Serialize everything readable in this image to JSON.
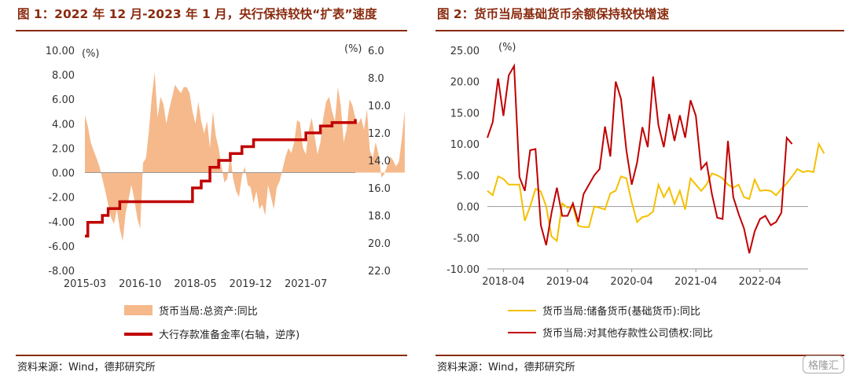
{
  "left": {
    "title": "图 1：2022 年 12 月-2023 年 1 月，央行保持较快“扩表”速度",
    "source": "资料来源：Wind，德邦研究所",
    "colors": {
      "area": "#f5b98b",
      "line": "#c00000"
    }
  },
  "right": {
    "title": "图 2：货币当局基础货币余额保持较快增速",
    "source": "资料来源：Wind，德邦研究所",
    "colors": {
      "series1": "#f5c000",
      "series2": "#c00000"
    }
  },
  "watermark": {
    "text": "格隆汇"
  },
  "chart_data": [
    {
      "type": "area",
      "left_unit": "(%)",
      "right_unit": "(%)",
      "y_ticks": [
        "10.00",
        "8.00",
        "6.00",
        "4.00",
        "2.00",
        "0.00",
        "-2.00",
        "-4.00",
        "-6.00",
        "-8.00"
      ],
      "ylim": [
        -8,
        10
      ],
      "y2_ticks": [
        "6.0",
        "8.0",
        "10.0",
        "12.0",
        "14.0",
        "16.0",
        "18.0",
        "20.0",
        "22.0"
      ],
      "y2lim": [
        6,
        22
      ],
      "y2_reversed": true,
      "x_ticks": [
        "2015-03",
        "2016-10",
        "2018-05",
        "2019-12",
        "2021-07"
      ],
      "grid": false,
      "legend_position": "bottom",
      "series": [
        {
          "name": "货币当局:总资产:同比",
          "kind": "area",
          "axis": "left",
          "start": "2015-03",
          "freq": "monthly",
          "values": [
            4.7,
            3.8,
            2.5,
            1.8,
            1.2,
            0.5,
            -0.5,
            -1.5,
            -2.6,
            -3.7,
            -4.2,
            -3.0,
            -4.6,
            -5.6,
            -3.3,
            -2.2,
            -1.0,
            -2.2,
            -3.7,
            -4.6,
            0.8,
            1.2,
            3.4,
            6.2,
            8.2,
            4.5,
            6.2,
            5.6,
            4.0,
            5.2,
            6.2,
            7.2,
            6.8,
            6.5,
            7.0,
            7.0,
            6.5,
            5.0,
            4.0,
            5.8,
            4.2,
            3.2,
            4.2,
            2.0,
            5.0,
            3.0,
            2.0,
            0.5,
            -0.8,
            -0.5,
            1.5,
            -0.5,
            -1.5,
            -2.0,
            -0.3,
            0.5,
            -1.0,
            -1.2,
            -2.5,
            -1.5,
            -3.0,
            -2.6,
            -3.5,
            -1.0,
            -2.0,
            -3.0,
            -1.2,
            -0.7,
            0.3,
            1.3,
            2.0,
            1.6,
            2.5,
            4.3,
            4.1,
            2.0,
            1.5,
            3.5,
            4.5,
            3.0,
            1.5,
            2.5,
            4.5,
            5.8,
            6.2,
            5.0,
            4.2,
            7.0,
            5.5,
            2.5,
            3.5,
            6.0,
            5.5,
            4.5,
            4.0,
            4.5,
            3.5,
            5.2,
            1.8,
            1.2,
            2.5,
            1.5,
            -0.4,
            -0.1,
            0.6,
            1.3,
            1.0,
            0.5,
            0.9,
            2.8,
            5.1
          ]
        },
        {
          "name": "大行存款准备金率(右轴，逆序)",
          "kind": "line",
          "axis": "right",
          "steps": [
            [
              "2015-03",
              19.5
            ],
            [
              "2015-04",
              18.5
            ],
            [
              "2015-09",
              18.0
            ],
            [
              "2015-11",
              17.5
            ],
            [
              "2016-03",
              17.0
            ],
            [
              "2018-04",
              16.0
            ],
            [
              "2018-07",
              15.5
            ],
            [
              "2018-10",
              14.5
            ],
            [
              "2019-01",
              14.0
            ],
            [
              "2019-05",
              13.5
            ],
            [
              "2019-09",
              13.0
            ],
            [
              "2020-01",
              12.5
            ],
            [
              "2021-07",
              12.0
            ],
            [
              "2021-12",
              11.5
            ],
            [
              "2022-04",
              11.25
            ],
            [
              "2022-12",
              11.0
            ]
          ]
        }
      ]
    },
    {
      "type": "line",
      "y_ticks": [
        "25.00",
        "20.00",
        "15.00",
        "10.00",
        "5.00",
        "0.00",
        "-5.00",
        "-10.00"
      ],
      "ylim": [
        -10,
        25
      ],
      "unit": "(%)",
      "x_ticks": [
        "2018-04",
        "2019-04",
        "2020-04",
        "2021-04",
        "2022-04"
      ],
      "grid": false,
      "legend_position": "bottom",
      "series": [
        {
          "name": "货币当局:储备货币(基础货币):同比",
          "start": "2018-01",
          "freq": "monthly",
          "values": [
            2.5,
            1.8,
            4.8,
            4.4,
            3.5,
            3.5,
            3.5,
            -2.3,
            0.0,
            2.8,
            2.4,
            0.0,
            -4.8,
            -5.5,
            0.5,
            -0.2,
            0.0,
            -3.1,
            -3.3,
            -3.3,
            0.0,
            -0.2,
            -0.5,
            2.1,
            2.5,
            4.8,
            4.5,
            0.7,
            -2.5,
            -1.7,
            -1.5,
            -0.8,
            3.5,
            1.5,
            3.0,
            0.4,
            2.5,
            -0.5,
            4.5,
            3.5,
            2.5,
            3.5,
            5.3,
            5.0,
            4.5,
            3.5,
            3.0,
            3.5,
            1.5,
            1.2,
            4.3,
            2.5,
            2.6,
            2.5,
            1.8,
            2.8,
            3.7,
            4.8,
            6.0,
            5.5,
            5.7,
            5.5,
            10.0,
            8.5
          ]
        },
        {
          "name": "货币当局:对其他存款性公司债权:同比",
          "start": "2018-01",
          "freq": "monthly",
          "values": [
            11.0,
            13.5,
            20.5,
            14.5,
            21.0,
            22.5,
            4.7,
            2.5,
            9.0,
            9.2,
            -3.0,
            -6.2,
            -1.0,
            3.0,
            -1.5,
            -1.5,
            0.5,
            -2.5,
            2.0,
            3.5,
            5.0,
            6.0,
            12.8,
            8.0,
            20.0,
            17.2,
            9.0,
            3.5,
            7.0,
            12.7,
            9.5,
            20.8,
            13.0,
            9.5,
            14.8,
            10.5,
            14.6,
            11.0,
            17.0,
            14.5,
            6.0,
            7.0,
            2.0,
            -1.8,
            -2.0,
            10.5,
            1.5,
            -1.2,
            -3.5,
            -7.5,
            -4.0,
            -2.0,
            -1.5,
            -3.0,
            -2.5,
            -1.0,
            11.0,
            10.0
          ]
        }
      ]
    }
  ]
}
